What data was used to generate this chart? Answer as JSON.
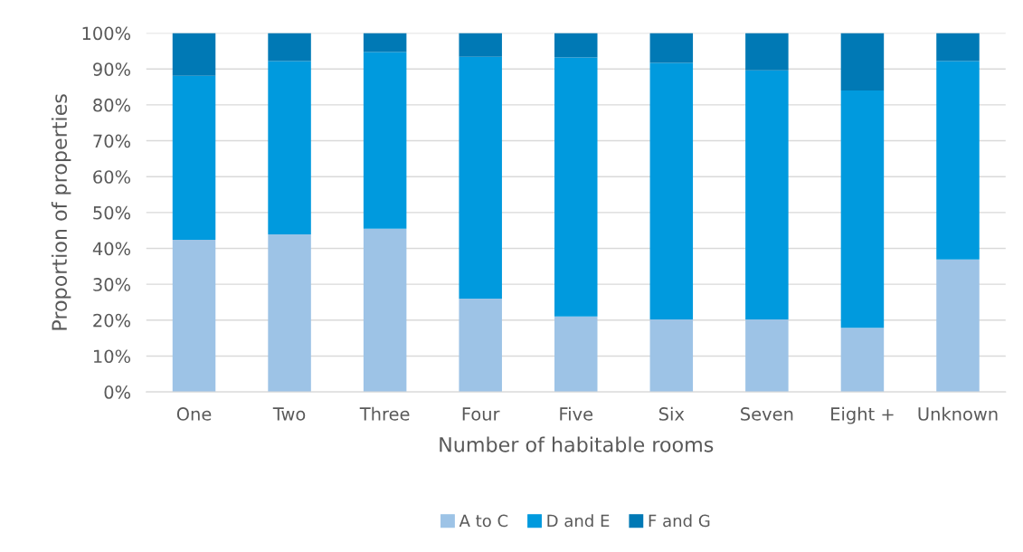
{
  "chart_data": {
    "type": "bar",
    "stacked": true,
    "xlabel": "Number of habitable rooms",
    "ylabel": "Proportion of properties",
    "categories": [
      "One",
      "Two",
      "Three",
      "Four",
      "Five",
      "Six",
      "Seven",
      "Eight +",
      "Unknown"
    ],
    "series": [
      {
        "name": "A to C",
        "color": "#9dc3e6",
        "values": [
          42.4,
          43.9,
          45.5,
          26,
          21,
          20.2,
          20.2,
          17.9,
          36.9
        ]
      },
      {
        "name": "D and E",
        "color": "#009ade",
        "values": [
          45.7,
          48.3,
          49.2,
          67.4,
          72.2,
          71.5,
          69.4,
          66.1,
          55.3
        ]
      },
      {
        "name": "F and G",
        "color": "#0079b5",
        "values": [
          11.9,
          7.8,
          5.3,
          6.6,
          6.8,
          8.3,
          10.4,
          16,
          7.8
        ]
      }
    ],
    "ylim": [
      0,
      100
    ],
    "yticks": [
      {
        "value": 0,
        "label": "0%"
      },
      {
        "value": 10,
        "label": "10%"
      },
      {
        "value": 20,
        "label": "20%"
      },
      {
        "value": 30,
        "label": "30%"
      },
      {
        "value": 40,
        "label": "40%"
      },
      {
        "value": 50,
        "label": "50%"
      },
      {
        "value": 60,
        "label": "60%"
      },
      {
        "value": 70,
        "label": "70%"
      },
      {
        "value": 80,
        "label": "80%"
      },
      {
        "value": 90,
        "label": "90%"
      },
      {
        "value": 100,
        "label": "100%"
      }
    ],
    "grid": "y",
    "legend": "bottom"
  }
}
